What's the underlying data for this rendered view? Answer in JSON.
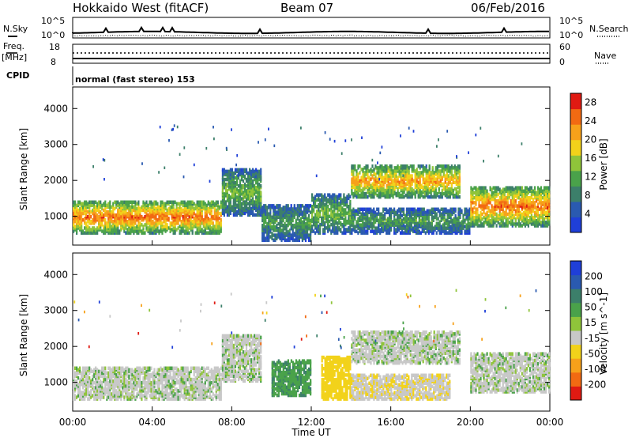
{
  "header": {
    "title": "Hokkaido West (fitACF)",
    "beam": "Beam 07",
    "date": "06/Feb/2016"
  },
  "left_labels": {
    "nsky": "N.Sky",
    "freq_line1": "Freq.",
    "freq_line2": "[MHz]",
    "cpid": "CPID"
  },
  "right_labels": {
    "nsearch": "N.Search",
    "nave": "Nave"
  },
  "nsky_axis": {
    "top": "10^5",
    "bottom": "10^0"
  },
  "nsearch_axis": {
    "top": "10^5",
    "bottom": "10^0"
  },
  "freq_axis": {
    "top": "18",
    "bottom": "8"
  },
  "nave_axis": {
    "top": "60",
    "bottom": "0"
  },
  "cpid_text": "normal (fast stereo) 153",
  "colors": {
    "power_scale": [
      "#1f3fd8",
      "#2a5ab0",
      "#3c7f6a",
      "#4aa24a",
      "#8fc43a",
      "#f2d21a",
      "#f7a11a",
      "#f26a12",
      "#e01a12"
    ],
    "velocity_scale": [
      "#1f3fd8",
      "#2a5ab0",
      "#3c7f6a",
      "#4aa24a",
      "#8fc43a",
      "#c8c8c8",
      "#f2d21a",
      "#f7a11a",
      "#f26a12",
      "#e01a12"
    ],
    "ground_scatter": "#c8c8c8"
  },
  "chart_data": [
    {
      "type": "heatmap",
      "title": "",
      "xlabel": "",
      "ylabel": "Slant Range [km]",
      "x_ticks": [
        "00:00",
        "04:00",
        "08:00",
        "12:00",
        "16:00",
        "20:00",
        "00:00"
      ],
      "y_ticks": [
        1000,
        2000,
        3000,
        4000
      ],
      "ylim": [
        200,
        4600
      ],
      "colorbar": {
        "label": "Power [dB]",
        "ticks": [
          4,
          8,
          12,
          16,
          20,
          24,
          28
        ],
        "range": [
          0,
          30
        ]
      },
      "echo_regions": [
        {
          "t_start_h": 0.0,
          "t_end_h": 7.5,
          "range_low_km": 500,
          "range_high_km": 1400,
          "typical_power_db": 18
        },
        {
          "t_start_h": 7.5,
          "t_end_h": 9.5,
          "range_low_km": 1000,
          "range_high_km": 2300,
          "typical_power_db": 10
        },
        {
          "t_start_h": 9.5,
          "t_end_h": 12.0,
          "range_low_km": 300,
          "range_high_km": 1300,
          "typical_power_db": 8
        },
        {
          "t_start_h": 12.0,
          "t_end_h": 14.0,
          "range_low_km": 500,
          "range_high_km": 1600,
          "typical_power_db": 10
        },
        {
          "t_start_h": 14.0,
          "t_end_h": 19.5,
          "range_low_km": 1500,
          "range_high_km": 2400,
          "typical_power_db": 16
        },
        {
          "t_start_h": 14.0,
          "t_end_h": 20.0,
          "range_low_km": 500,
          "range_high_km": 1200,
          "typical_power_db": 8
        },
        {
          "t_start_h": 20.0,
          "t_end_h": 24.0,
          "range_low_km": 700,
          "range_high_km": 1800,
          "typical_power_db": 18
        }
      ]
    },
    {
      "type": "heatmap",
      "title": "",
      "xlabel": "Time UT",
      "ylabel": "Slant Range [km]",
      "x_ticks": [
        "00:00",
        "04:00",
        "08:00",
        "12:00",
        "16:00",
        "20:00",
        "00:00"
      ],
      "y_ticks": [
        1000,
        2000,
        3000,
        4000
      ],
      "ylim": [
        200,
        4600
      ],
      "colorbar": {
        "label": "Velocity [m s^-1]",
        "ticks": [
          200,
          100,
          50,
          15,
          -15,
          -50,
          -100,
          -200
        ]
      },
      "echo_regions": [
        {
          "t_start_h": 0.0,
          "t_end_h": 7.5,
          "range_low_km": 500,
          "range_high_km": 1400,
          "typical_velocity_ms": 0
        },
        {
          "t_start_h": 7.5,
          "t_end_h": 9.5,
          "range_low_km": 1000,
          "range_high_km": 2300,
          "typical_velocity_ms": 0
        },
        {
          "t_start_h": 10.0,
          "t_end_h": 12.0,
          "range_low_km": 600,
          "range_high_km": 1600,
          "typical_velocity_ms": 40
        },
        {
          "t_start_h": 12.5,
          "t_end_h": 14.0,
          "range_low_km": 500,
          "range_high_km": 1700,
          "typical_velocity_ms": -80
        },
        {
          "t_start_h": 14.0,
          "t_end_h": 19.5,
          "range_low_km": 1500,
          "range_high_km": 2400,
          "typical_velocity_ms": 0
        },
        {
          "t_start_h": 14.0,
          "t_end_h": 19.0,
          "range_low_km": 500,
          "range_high_km": 1200,
          "typical_velocity_ms": -40
        },
        {
          "t_start_h": 20.0,
          "t_end_h": 24.0,
          "range_low_km": 700,
          "range_high_km": 1800,
          "typical_velocity_ms": 0
        }
      ]
    }
  ]
}
